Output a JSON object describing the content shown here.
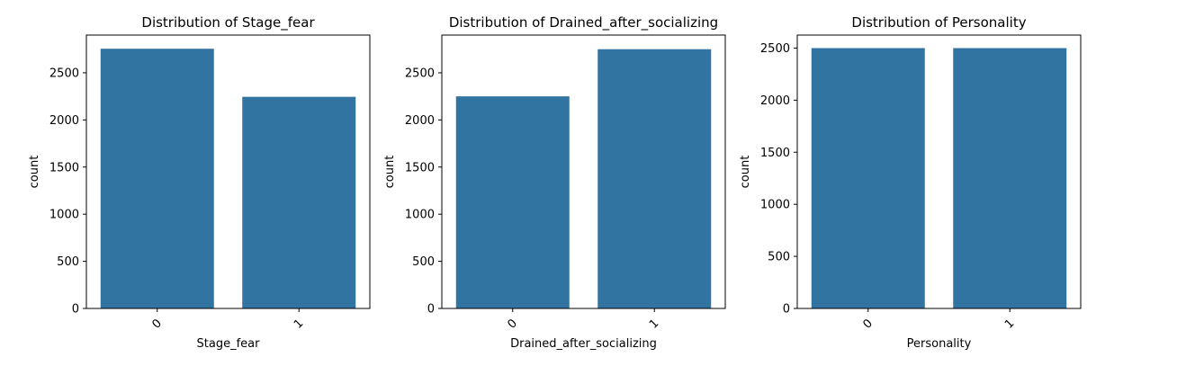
{
  "chart_data": [
    {
      "type": "bar",
      "title": "Distribution of Stage_fear",
      "xlabel": "Stage_fear",
      "ylabel": "count",
      "categories": [
        "0",
        "1"
      ],
      "values": [
        2755,
        2245
      ],
      "ylim": [
        0,
        2900
      ],
      "yticks": [
        0,
        500,
        1000,
        1500,
        2000,
        2500
      ],
      "bar_color": "#3274a1",
      "grid": false
    },
    {
      "type": "bar",
      "title": "Distribution of Drained_after_socializing",
      "xlabel": "Drained_after_socializing",
      "ylabel": "count",
      "categories": [
        "0",
        "1"
      ],
      "values": [
        2250,
        2750
      ],
      "ylim": [
        0,
        2900
      ],
      "yticks": [
        0,
        500,
        1000,
        1500,
        2000,
        2500
      ],
      "bar_color": "#3274a1",
      "grid": false
    },
    {
      "type": "bar",
      "title": "Distribution of Personality",
      "xlabel": "Personality",
      "ylabel": "count",
      "categories": [
        "0",
        "1"
      ],
      "values": [
        2500,
        2500
      ],
      "ylim": [
        0,
        2625
      ],
      "yticks": [
        0,
        500,
        1000,
        1500,
        2000,
        2500
      ],
      "bar_color": "#3274a1",
      "grid": false
    }
  ]
}
